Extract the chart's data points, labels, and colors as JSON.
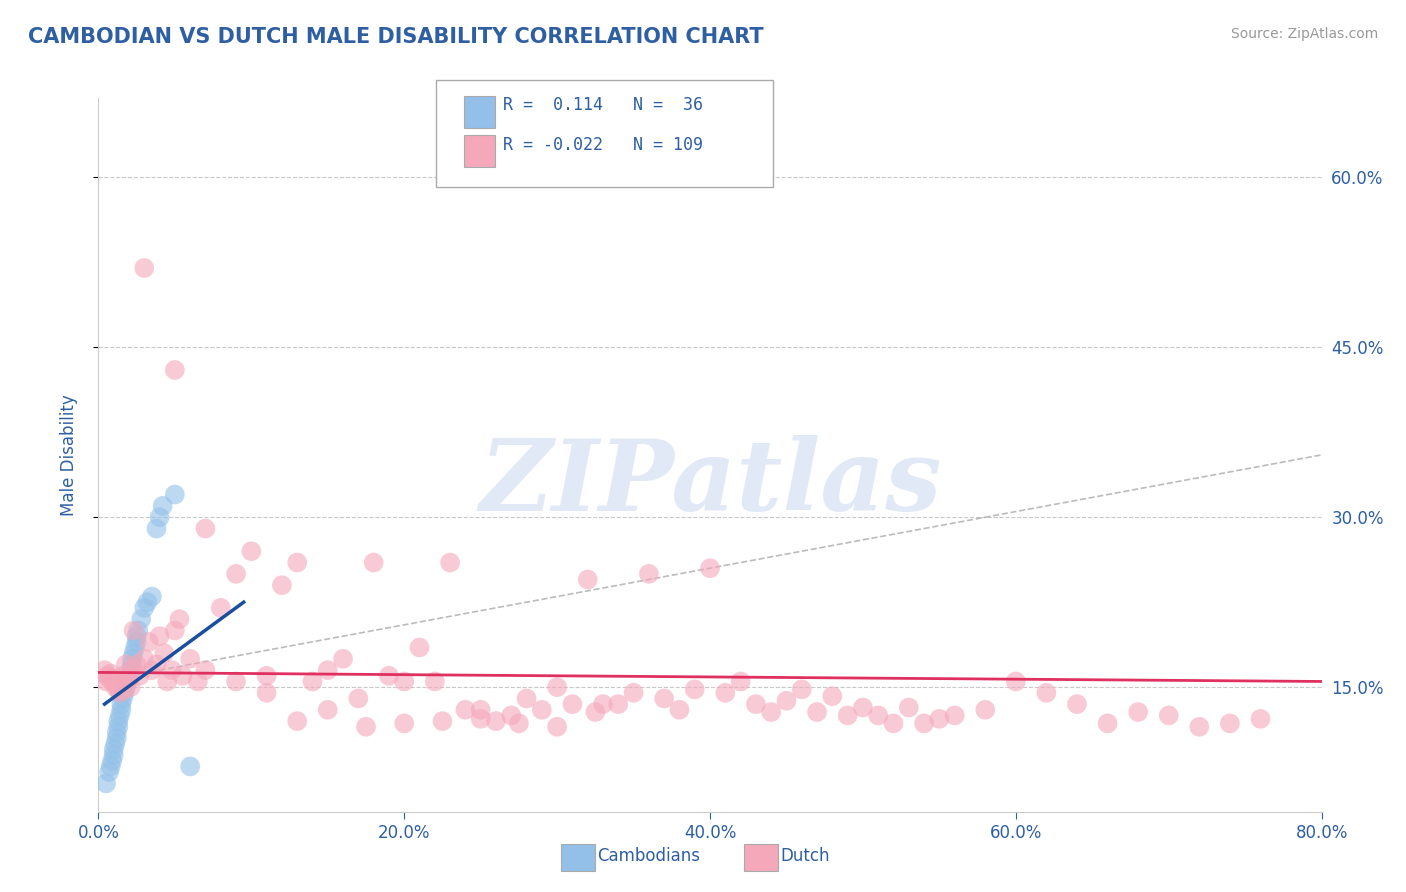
{
  "title": "CAMBODIAN VS DUTCH MALE DISABILITY CORRELATION CHART",
  "source": "Source: ZipAtlas.com",
  "ylabel": "Male Disability",
  "xlim": [
    0.0,
    0.8
  ],
  "ylim": [
    0.04,
    0.67
  ],
  "yticks": [
    0.15,
    0.3,
    0.45,
    0.6
  ],
  "ytick_labels": [
    "15.0%",
    "30.0%",
    "45.0%",
    "60.0%"
  ],
  "xticks": [
    0.0,
    0.2,
    0.4,
    0.6,
    0.8
  ],
  "xtick_labels": [
    "0.0%",
    "20.0%",
    "40.0%",
    "60.0%",
    "80.0%"
  ],
  "title_color": "#2E5FA3",
  "axis_color": "#2E5FA3",
  "background_color": "#ffffff",
  "cambodian_color": "#92C0E8",
  "dutch_color": "#F4A8BA",
  "watermark_color": "#C8D8EE",
  "watermark_text": "ZIPatlas",
  "cambodian_trend_color": "#1A4FA0",
  "dutch_trend_color": "#E03060",
  "diag_trend_color": "#AAAAAA",
  "legend_entries": [
    {
      "label": "R =  0.114   N =  36",
      "color": "#92C0E8"
    },
    {
      "label": "R = -0.022   N = 109",
      "color": "#F4A8BA"
    }
  ],
  "cambodian_x": [
    0.005,
    0.007,
    0.008,
    0.009,
    0.01,
    0.01,
    0.011,
    0.012,
    0.012,
    0.013,
    0.013,
    0.014,
    0.015,
    0.015,
    0.016,
    0.017,
    0.018,
    0.019,
    0.02,
    0.021,
    0.022,
    0.022,
    0.023,
    0.024,
    0.025,
    0.025,
    0.026,
    0.028,
    0.03,
    0.032,
    0.035,
    0.038,
    0.04,
    0.042,
    0.05,
    0.06
  ],
  "cambodian_y": [
    0.065,
    0.075,
    0.08,
    0.085,
    0.09,
    0.095,
    0.1,
    0.105,
    0.11,
    0.115,
    0.12,
    0.125,
    0.13,
    0.135,
    0.14,
    0.145,
    0.15,
    0.155,
    0.16,
    0.165,
    0.17,
    0.175,
    0.18,
    0.185,
    0.19,
    0.195,
    0.2,
    0.21,
    0.22,
    0.225,
    0.23,
    0.29,
    0.3,
    0.31,
    0.32,
    0.08
  ],
  "dutch_x": [
    0.004,
    0.005,
    0.006,
    0.007,
    0.008,
    0.009,
    0.01,
    0.011,
    0.012,
    0.013,
    0.014,
    0.015,
    0.016,
    0.017,
    0.018,
    0.019,
    0.02,
    0.021,
    0.022,
    0.023,
    0.025,
    0.027,
    0.03,
    0.033,
    0.035,
    0.038,
    0.04,
    0.043,
    0.045,
    0.048,
    0.05,
    0.053,
    0.055,
    0.06,
    0.065,
    0.07,
    0.08,
    0.09,
    0.1,
    0.11,
    0.12,
    0.13,
    0.14,
    0.15,
    0.16,
    0.17,
    0.18,
    0.19,
    0.2,
    0.21,
    0.22,
    0.23,
    0.24,
    0.25,
    0.26,
    0.27,
    0.28,
    0.29,
    0.3,
    0.31,
    0.32,
    0.33,
    0.34,
    0.35,
    0.36,
    0.37,
    0.38,
    0.39,
    0.4,
    0.41,
    0.42,
    0.43,
    0.44,
    0.45,
    0.46,
    0.47,
    0.48,
    0.49,
    0.5,
    0.51,
    0.52,
    0.53,
    0.54,
    0.55,
    0.56,
    0.58,
    0.6,
    0.62,
    0.64,
    0.66,
    0.68,
    0.7,
    0.72,
    0.74,
    0.76,
    0.03,
    0.05,
    0.07,
    0.09,
    0.11,
    0.13,
    0.15,
    0.175,
    0.2,
    0.225,
    0.25,
    0.275,
    0.3,
    0.325
  ],
  "dutch_y": [
    0.165,
    0.155,
    0.16,
    0.158,
    0.162,
    0.155,
    0.157,
    0.15,
    0.152,
    0.148,
    0.145,
    0.155,
    0.16,
    0.148,
    0.17,
    0.155,
    0.158,
    0.15,
    0.165,
    0.2,
    0.17,
    0.16,
    0.175,
    0.19,
    0.165,
    0.17,
    0.195,
    0.18,
    0.155,
    0.165,
    0.2,
    0.21,
    0.16,
    0.175,
    0.155,
    0.165,
    0.22,
    0.25,
    0.27,
    0.16,
    0.24,
    0.26,
    0.155,
    0.165,
    0.175,
    0.14,
    0.26,
    0.16,
    0.155,
    0.185,
    0.155,
    0.26,
    0.13,
    0.13,
    0.12,
    0.125,
    0.14,
    0.13,
    0.15,
    0.135,
    0.245,
    0.135,
    0.135,
    0.145,
    0.25,
    0.14,
    0.13,
    0.148,
    0.255,
    0.145,
    0.155,
    0.135,
    0.128,
    0.138,
    0.148,
    0.128,
    0.142,
    0.125,
    0.132,
    0.125,
    0.118,
    0.132,
    0.118,
    0.122,
    0.125,
    0.13,
    0.155,
    0.145,
    0.135,
    0.118,
    0.128,
    0.125,
    0.115,
    0.118,
    0.122,
    0.52,
    0.43,
    0.29,
    0.155,
    0.145,
    0.12,
    0.13,
    0.115,
    0.118,
    0.12,
    0.122,
    0.118,
    0.115,
    0.128
  ],
  "diag_line_x": [
    0.0,
    0.8
  ],
  "diag_line_y": [
    0.155,
    0.355
  ],
  "cambodian_line_x": [
    0.004,
    0.095
  ],
  "cambodian_line_y": [
    0.135,
    0.225
  ],
  "dutch_line_x": [
    0.0,
    0.8
  ],
  "dutch_line_y": [
    0.163,
    0.155
  ]
}
